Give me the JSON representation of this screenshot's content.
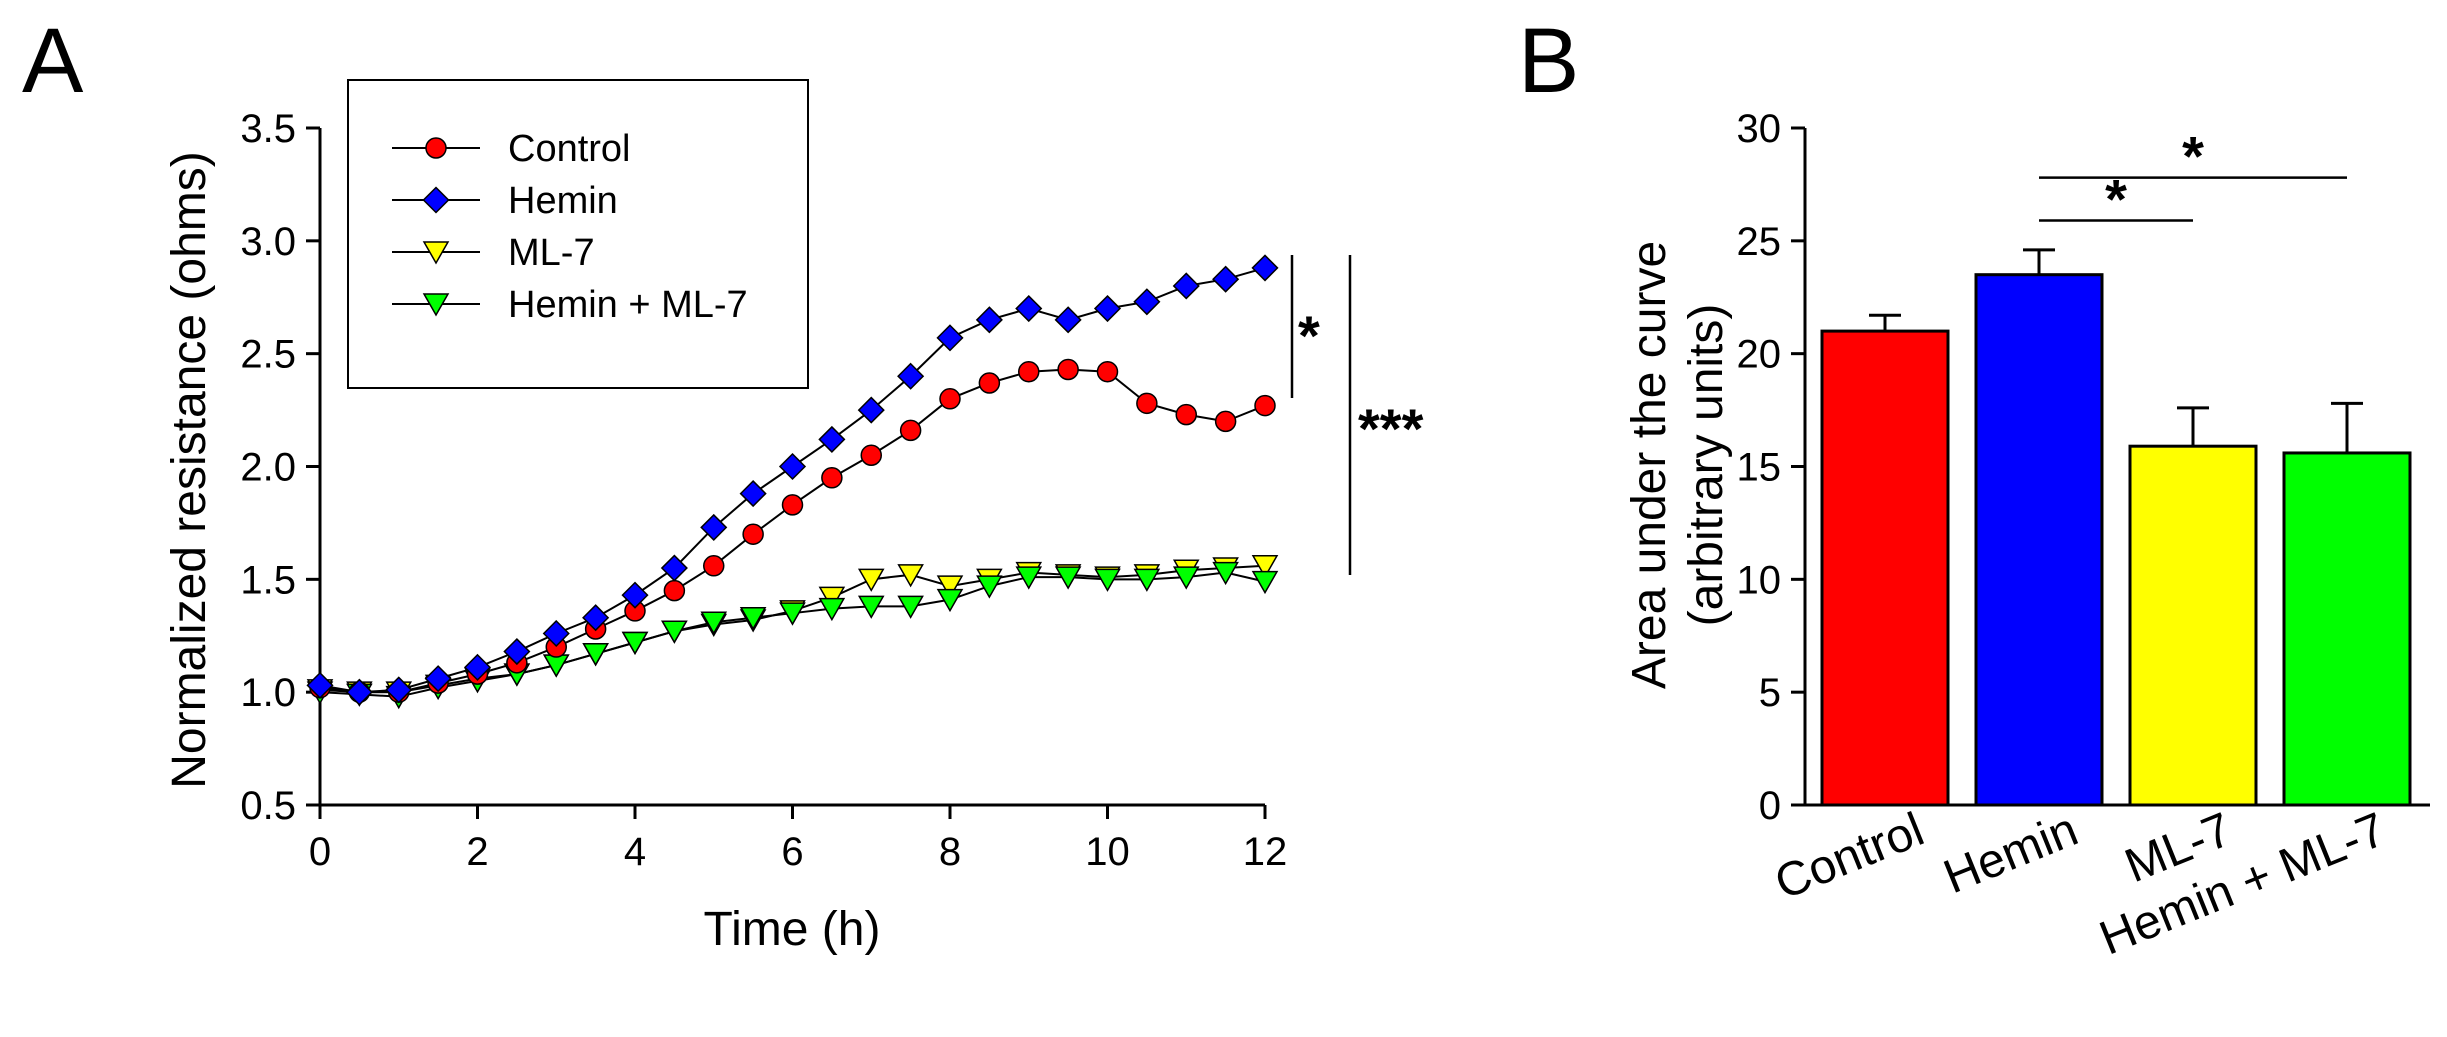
{
  "panels": {
    "a_letter": "A",
    "b_letter": "B"
  },
  "chart_data": [
    {
      "type": "line",
      "panel": "A",
      "xlabel": "Time (h)",
      "ylabel": "Normalized resistance (ohms)",
      "xlim": [
        0,
        12
      ],
      "ylim": [
        0.5,
        3.5
      ],
      "xticks": [
        0,
        2,
        4,
        6,
        8,
        10,
        12
      ],
      "yticks": [
        "0.5",
        "1.0",
        "1.5",
        "2.0",
        "2.5",
        "3.0",
        "3.5"
      ],
      "grid": false,
      "legend_position": "top-left",
      "x": [
        0,
        0.5,
        1,
        1.5,
        2,
        2.5,
        3,
        3.5,
        4,
        4.5,
        5,
        5.5,
        6,
        6.5,
        7,
        7.5,
        8,
        8.5,
        9,
        9.5,
        10,
        10.5,
        11,
        11.5,
        12
      ],
      "series": [
        {
          "name": "Control",
          "color": "#ff0000",
          "marker": "circle",
          "values": [
            1.02,
            1.0,
            1.0,
            1.04,
            1.08,
            1.13,
            1.2,
            1.28,
            1.36,
            1.45,
            1.56,
            1.7,
            1.83,
            1.95,
            2.05,
            2.16,
            2.3,
            2.37,
            2.42,
            2.43,
            2.42,
            2.28,
            2.23,
            2.2,
            2.27
          ]
        },
        {
          "name": "Hemin",
          "color": "#0000ff",
          "marker": "diamond",
          "values": [
            1.03,
            1.0,
            1.01,
            1.06,
            1.11,
            1.18,
            1.26,
            1.33,
            1.43,
            1.55,
            1.73,
            1.88,
            2.0,
            2.12,
            2.25,
            2.4,
            2.57,
            2.65,
            2.7,
            2.65,
            2.7,
            2.73,
            2.8,
            2.83,
            2.88
          ]
        },
        {
          "name": "ML-7",
          "color": "#ffff00",
          "marker": "triangle-down",
          "values": [
            1.01,
            1.0,
            1.0,
            1.03,
            1.06,
            1.08,
            1.12,
            1.17,
            1.22,
            1.27,
            1.3,
            1.32,
            1.36,
            1.42,
            1.5,
            1.52,
            1.47,
            1.5,
            1.53,
            1.52,
            1.51,
            1.52,
            1.54,
            1.55,
            1.56
          ]
        },
        {
          "name": "Hemin + ML-7",
          "color": "#00ff00",
          "marker": "triangle-down",
          "values": [
            1.0,
            0.99,
            0.98,
            1.02,
            1.05,
            1.08,
            1.12,
            1.17,
            1.22,
            1.27,
            1.31,
            1.33,
            1.35,
            1.37,
            1.38,
            1.38,
            1.41,
            1.47,
            1.51,
            1.51,
            1.5,
            1.5,
            1.51,
            1.53,
            1.49
          ]
        }
      ],
      "annotations": [
        {
          "text": "*",
          "from": [
            2.3,
            2.9
          ]
        },
        {
          "text": "***",
          "from": [
            1.5,
            2.9
          ]
        }
      ]
    },
    {
      "type": "bar",
      "panel": "B",
      "ylabel_line1": "Area under the curve",
      "ylabel_line2": "(arbitrary units)",
      "categories": [
        "Control",
        "Hemin",
        "ML-7",
        "Hemin + ML-7"
      ],
      "values": [
        21.0,
        23.5,
        15.9,
        15.6
      ],
      "errors": [
        0.7,
        1.1,
        1.7,
        2.2
      ],
      "colors": [
        "#ff0000",
        "#0000ff",
        "#ffff00",
        "#00ff00"
      ],
      "ylim": [
        0,
        30
      ],
      "yticks": [
        "0",
        "5",
        "10",
        "15",
        "20",
        "25",
        "30"
      ],
      "grid": false,
      "significance": [
        {
          "text": "*",
          "from": 1,
          "to": 2
        },
        {
          "text": "*",
          "from": 1,
          "to": 3
        }
      ]
    }
  ]
}
